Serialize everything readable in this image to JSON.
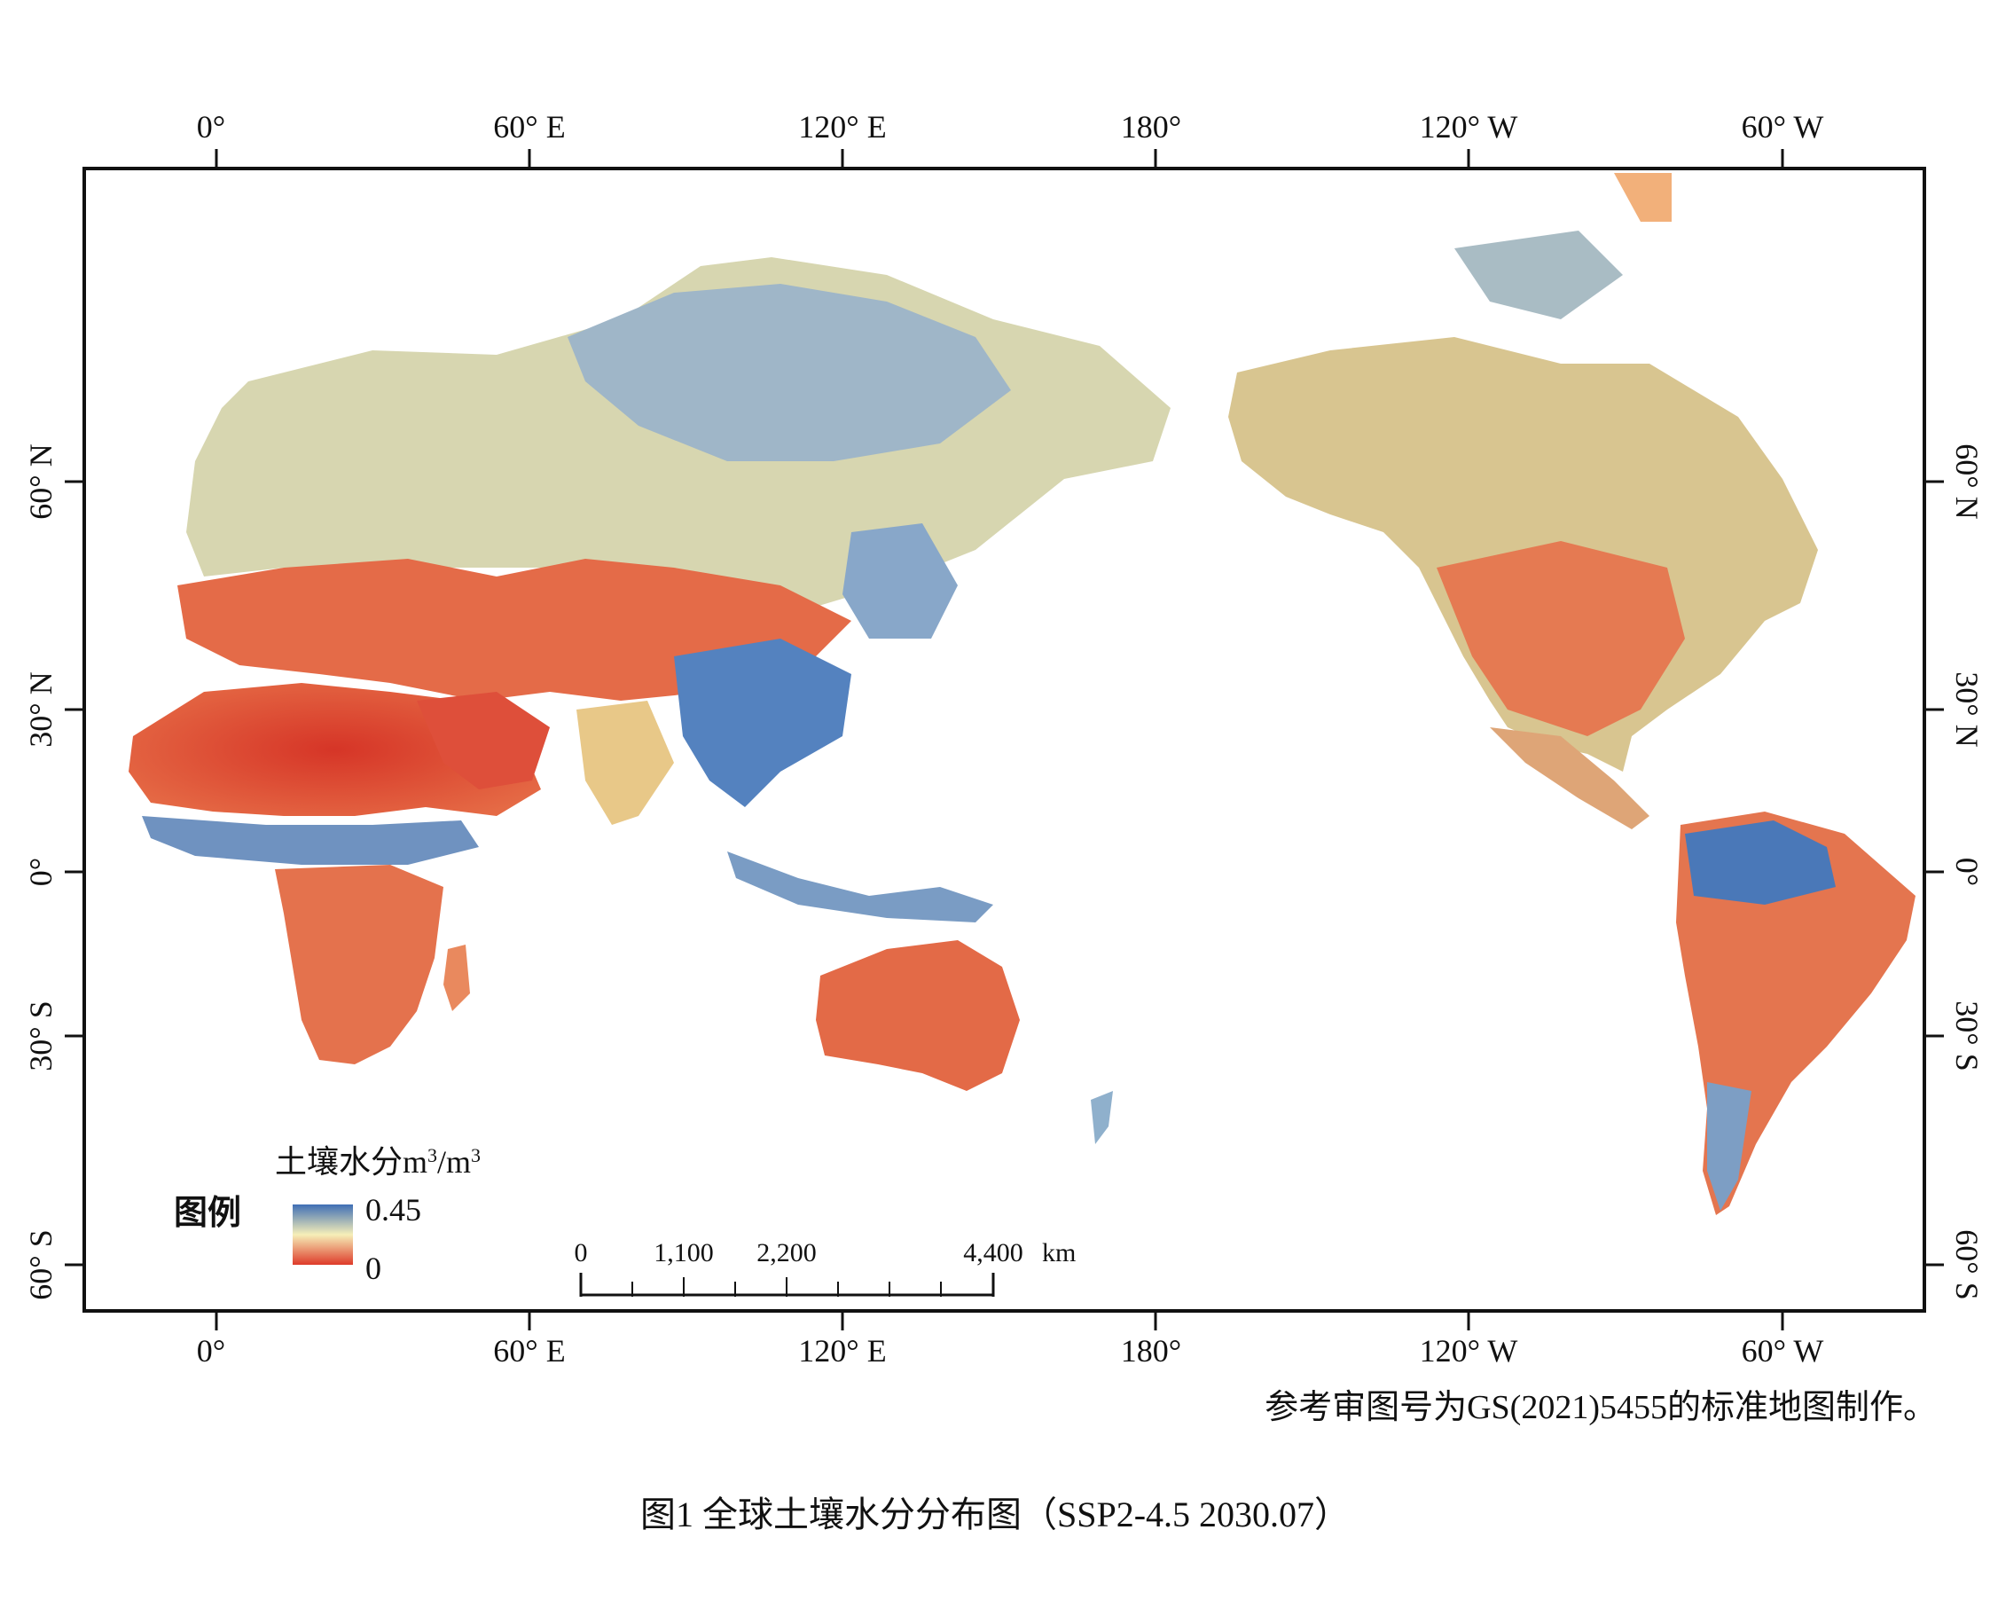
{
  "map": {
    "top_longitude_ticks": [
      "0°",
      "60° E",
      "120° E",
      "180°",
      "120° W",
      "60° W"
    ],
    "bottom_longitude_ticks": [
      "0°",
      "60° E",
      "120° E",
      "180°",
      "120° W",
      "60° W"
    ],
    "left_latitude_ticks": [
      "60° N",
      "30° N",
      "0°",
      "30° S",
      "60° S"
    ],
    "right_latitude_ticks": [
      "60° N",
      "30° N",
      "0°",
      "30° S",
      "60° S"
    ],
    "colors": {
      "wet": "#3f6fb5",
      "mid": "#f6efb8",
      "dry": "#de3b2a",
      "frame": "#111111"
    }
  },
  "legend": {
    "title": "图例",
    "variable": "土壤水分",
    "unit_base": "m",
    "unit_exp": "3",
    "unit_sep": "/m",
    "unit_exp2": "3",
    "max_label": "0.45",
    "min_label": "0"
  },
  "scale_bar": {
    "labels": [
      "0",
      "1,100",
      "2,200",
      "4,400"
    ],
    "unit": "km"
  },
  "credit": "参考审图号为GS(2021)5455的标准地图制作。",
  "caption": "图1 全球土壤水分分布图（SSP2-4.5 2030.07）"
}
